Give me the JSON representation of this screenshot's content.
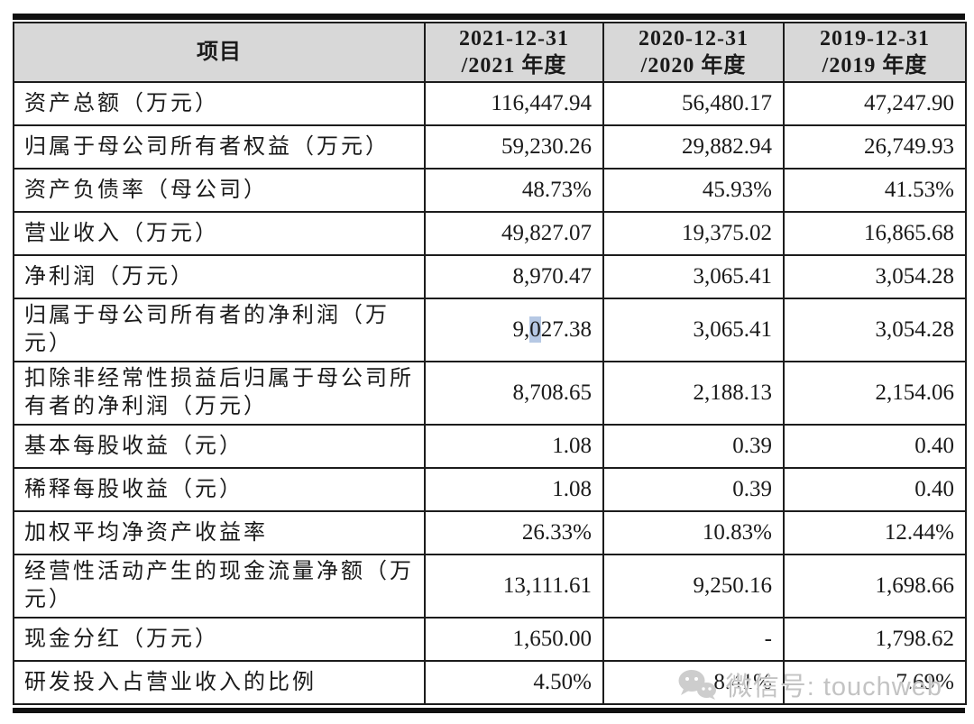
{
  "table": {
    "header": {
      "item_label": "项目",
      "columns": [
        {
          "line1": "2021-12-31",
          "line2": "/2021 年度"
        },
        {
          "line1": "2020-12-31",
          "line2": "/2020 年度"
        },
        {
          "line1": "2019-12-31",
          "line2": "/2019 年度"
        }
      ]
    },
    "rows": [
      {
        "label": "资产总额（万元）",
        "values": [
          "116,447.94",
          "56,480.17",
          "47,247.90"
        ]
      },
      {
        "label": "归属于母公司所有者权益（万元）",
        "values": [
          "59,230.26",
          "29,882.94",
          "26,749.93"
        ]
      },
      {
        "label": "资产负债率（母公司）",
        "values": [
          "48.73%",
          "45.93%",
          "41.53%"
        ]
      },
      {
        "label": "营业收入（万元）",
        "values": [
          "49,827.07",
          "19,375.02",
          "16,865.68"
        ]
      },
      {
        "label": "净利润（万元）",
        "values": [
          "8,970.47",
          "3,065.41",
          "3,054.28"
        ]
      },
      {
        "label": "归属于母公司所有者的净利润（万元）",
        "values": [
          "9,027.38",
          "3,065.41",
          "3,054.28"
        ]
      },
      {
        "label": "扣除非经常性损益后归属于母公司所有者的净利润（万元）",
        "values": [
          "8,708.65",
          "2,188.13",
          "2,154.06"
        ]
      },
      {
        "label": "基本每股收益（元）",
        "values": [
          "1.08",
          "0.39",
          "0.40"
        ]
      },
      {
        "label": "稀释每股收益（元）",
        "values": [
          "1.08",
          "0.39",
          "0.40"
        ]
      },
      {
        "label": "加权平均净资产收益率",
        "values": [
          "26.33%",
          "10.83%",
          "12.44%"
        ]
      },
      {
        "label": "经营性活动产生的现金流量净额（万元）",
        "values": [
          "13,111.61",
          "9,250.16",
          "1,698.66"
        ]
      },
      {
        "label": "现金分红（万元）",
        "values": [
          "1,650.00",
          "-",
          "1,798.62"
        ]
      },
      {
        "label": "研发投入占营业收入的比例",
        "values": [
          "4.50%",
          "8.41%",
          "7.69%"
        ]
      }
    ],
    "highlight": {
      "row": 5,
      "col": 0,
      "prefix": "9,",
      "selected": "0",
      "suffix": "27.38",
      "color": "#b6c8e4"
    }
  },
  "watermark": {
    "icon": "wechat-icon",
    "label": "微信号: touchweb"
  },
  "colors": {
    "header_bg": "#d8d8d8",
    "border": "#1c1c1c",
    "text": "#1a1a1a",
    "selection": "#b6c8e4",
    "watermark_text": "#c3c3c3",
    "watermark_icon": "#cdcdcd"
  }
}
